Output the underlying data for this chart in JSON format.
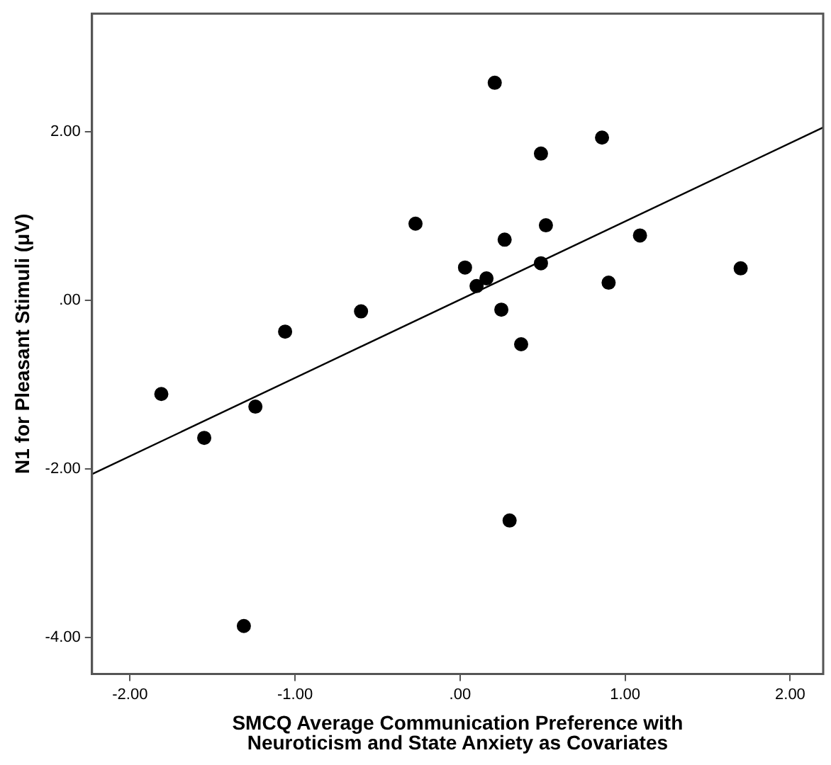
{
  "chart_data": {
    "type": "scatter",
    "xlabel": "SMCQ Average Communication Preference with Neuroticism and State Anxiety as Covariates",
    "ylabel": "N1 for Pleasant Stimuli (μV)",
    "xlim": [
      -2.23,
      2.2
    ],
    "ylim": [
      -4.43,
      3.4
    ],
    "xticks": [
      {
        "value": -2,
        "label": "-2.00"
      },
      {
        "value": -1,
        "label": "-1.00"
      },
      {
        "value": 0,
        "label": ".00"
      },
      {
        "value": 1,
        "label": "1.00"
      },
      {
        "value": 2,
        "label": "2.00"
      }
    ],
    "yticks": [
      {
        "value": -4,
        "label": "-4.00"
      },
      {
        "value": -2,
        "label": "-2.00"
      },
      {
        "value": 0,
        "label": ".00"
      },
      {
        "value": 2,
        "label": "2.00"
      }
    ],
    "grid": false,
    "legend": false,
    "marker": "circle",
    "series": [
      {
        "color": "#000000",
        "x": [
          0.21,
          0.86,
          0.49,
          -0.27,
          0.52,
          0.27,
          1.09,
          0.03,
          0.16,
          0.1,
          0.49,
          1.7,
          0.9,
          0.25,
          0.37,
          -0.6,
          -1.06,
          -1.81,
          -1.24,
          -1.55,
          0.3,
          -1.31
        ],
        "values": [
          2.58,
          1.93,
          1.74,
          0.91,
          0.89,
          0.72,
          0.77,
          0.39,
          0.26,
          0.17,
          0.44,
          0.38,
          0.21,
          -0.11,
          -0.52,
          -0.13,
          -0.37,
          -1.11,
          -1.26,
          -1.63,
          -2.61,
          -3.86
        ]
      },
      {
        "type": "line",
        "color": "#000000",
        "line_style": "solid",
        "marker": "none",
        "x": [
          -2.23,
          2.2
        ],
        "values": [
          -2.06,
          2.05
        ]
      }
    ]
  }
}
